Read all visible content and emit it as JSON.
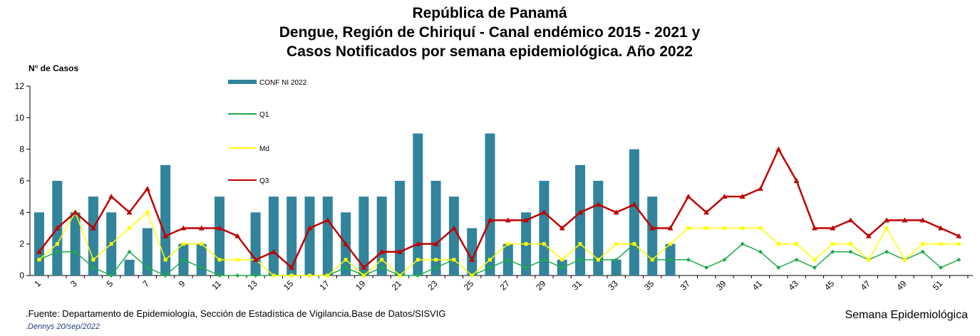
{
  "chart_data": {
    "type": "bar-line",
    "title": "República de Panamá",
    "subtitle": [
      "Dengue, Región de Chiriquí - Canal endémico 2015 - 2021 y",
      "Casos Notificados por semana epidemiológica. Año 2022"
    ],
    "y_label": "N° de Casos",
    "x_label": "Semana Epidemiológica",
    "footnotes": [
      ".Fuente: Departamento de Epidemiología, Sección de Estadística de Vigilancia.Base de Datos/SISVIG",
      ".Dennys  20/sep/2022"
    ],
    "categories": [
      1,
      null,
      3,
      null,
      5,
      null,
      7,
      null,
      9,
      null,
      11,
      null,
      13,
      null,
      15,
      null,
      17,
      null,
      19,
      null,
      21,
      null,
      23,
      null,
      25,
      null,
      27,
      null,
      29,
      null,
      31,
      null,
      33,
      null,
      35,
      null,
      37,
      null,
      39,
      null,
      41,
      null,
      43,
      null,
      45,
      null,
      47,
      null,
      49,
      null,
      51,
      null
    ],
    "ylim": [
      0,
      12
    ],
    "yticks": [
      0,
      2,
      4,
      6,
      8,
      10,
      12
    ],
    "series": [
      {
        "name": "CONF NI 2022",
        "type": "bar",
        "color": "#31849b",
        "values": [
          4,
          6,
          4,
          5,
          4,
          1,
          3,
          7,
          2,
          2,
          5,
          0,
          4,
          5,
          5,
          5,
          5,
          4,
          5,
          5,
          6,
          9,
          6,
          5,
          3,
          9,
          2,
          4,
          6,
          1,
          7,
          6,
          1,
          8,
          5,
          2,
          null,
          null,
          null,
          null,
          null,
          null,
          null,
          null,
          null,
          null,
          null,
          null,
          null,
          null,
          null,
          null
        ]
      },
      {
        "name": "Q1",
        "type": "line",
        "color": "#1faa4a",
        "values": [
          1,
          1.5,
          1.5,
          0.5,
          0,
          1.5,
          0.5,
          0,
          1,
          0.5,
          0,
          0,
          0,
          0,
          0,
          0,
          0,
          0.5,
          0,
          0.5,
          0,
          0,
          0.5,
          1,
          0,
          0.5,
          1,
          0.5,
          1,
          0.5,
          1,
          1,
          1,
          2,
          1,
          1,
          1,
          0.5,
          1,
          2,
          1.5,
          0.5,
          1,
          0.5,
          1.5,
          1.5,
          1,
          1.5,
          1,
          1.5,
          0.5,
          1
        ]
      },
      {
        "name": "Md",
        "type": "line",
        "color": "#ffff00",
        "values": [
          1,
          2,
          4,
          1,
          2,
          3,
          4,
          1,
          2,
          2,
          1,
          1,
          1,
          0,
          0,
          0,
          0,
          1,
          0,
          1,
          0,
          1,
          1,
          1,
          0,
          1,
          2,
          2,
          2,
          1,
          2,
          1,
          2,
          2,
          1,
          2,
          3,
          3,
          3,
          3,
          3,
          2,
          2,
          1,
          2,
          2,
          1,
          3,
          1,
          2,
          2,
          2
        ]
      },
      {
        "name": "Q3",
        "type": "line",
        "color": "#c00000",
        "values": [
          1.5,
          3,
          4,
          3,
          5,
          4,
          5.5,
          2.5,
          3,
          3,
          3,
          2.5,
          1,
          1.5,
          0.5,
          3,
          3.5,
          2,
          0.5,
          1.5,
          1.5,
          2,
          2,
          3,
          1,
          3.5,
          3.5,
          3.5,
          4,
          3,
          4,
          4.5,
          4,
          4.5,
          3,
          3,
          5,
          4,
          5,
          5,
          5.5,
          8,
          6,
          3,
          3,
          3.5,
          2.5,
          3.5,
          3.5,
          3.5,
          3,
          2.5
        ]
      }
    ]
  }
}
